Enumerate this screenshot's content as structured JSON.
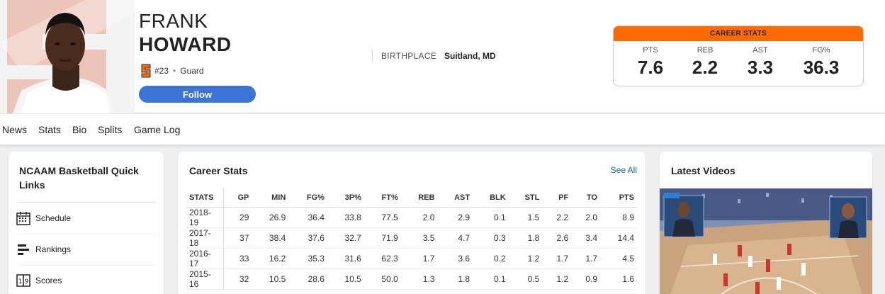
{
  "player": {
    "first_name": "FRANK",
    "last_name": "HOWARD",
    "number": "#23",
    "position": "Guard",
    "follow_label": "Follow",
    "birthplace_label": "BIRTHPLACE",
    "birthplace_value": "Suitland, MD",
    "team_logo_icon": "syracuse-s-logo"
  },
  "career_summary": {
    "title": "CAREER STATS",
    "accent": "#ff6a00",
    "stats": [
      {
        "label": "PTS",
        "value": "7.6"
      },
      {
        "label": "REB",
        "value": "2.2"
      },
      {
        "label": "AST",
        "value": "3.3"
      },
      {
        "label": "FG%",
        "value": "36.3"
      }
    ]
  },
  "subnav": [
    "News",
    "Stats",
    "Bio",
    "Splits",
    "Game Log"
  ],
  "quick_links": {
    "title": "NCAAM Basketball Quick Links",
    "items": [
      {
        "label": "Schedule",
        "icon": "calendar-icon"
      },
      {
        "label": "Rankings",
        "icon": "rankings-icon"
      },
      {
        "label": "Scores",
        "icon": "scores-icon"
      }
    ]
  },
  "career_stats": {
    "title": "Career Stats",
    "see_all": "See All",
    "columns": [
      "STATS",
      "GP",
      "MIN",
      "FG%",
      "3P%",
      "FT%",
      "REB",
      "AST",
      "BLK",
      "STL",
      "PF",
      "TO",
      "PTS"
    ],
    "rows": [
      [
        "2018-19",
        "29",
        "26.9",
        "36.4",
        "33.8",
        "77.5",
        "2.0",
        "2.9",
        "0.1",
        "1.5",
        "2.2",
        "2.0",
        "8.9"
      ],
      [
        "2017-18",
        "37",
        "38.4",
        "37.6",
        "32.7",
        "71.9",
        "3.5",
        "4.7",
        "0.3",
        "1.8",
        "2.6",
        "3.4",
        "14.4"
      ],
      [
        "2016-17",
        "33",
        "16.2",
        "35.3",
        "31.6",
        "62.3",
        "1.7",
        "3.6",
        "0.2",
        "1.2",
        "1.7",
        "1.7",
        "4.5"
      ],
      [
        "2015-16",
        "32",
        "10.5",
        "28.6",
        "10.5",
        "50.0",
        "1.3",
        "1.8",
        "0.1",
        "0.5",
        "1.2",
        "0.9",
        "1.6"
      ]
    ]
  },
  "latest_videos": {
    "title": "Latest Videos"
  }
}
